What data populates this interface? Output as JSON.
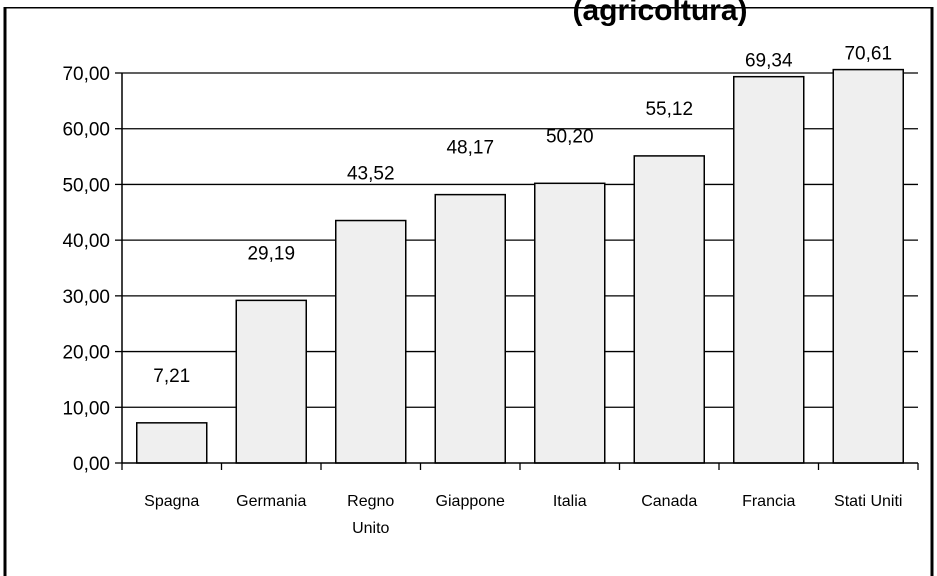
{
  "chart_data": {
    "type": "bar",
    "title": "(agricoltura)",
    "categories": [
      "Spagna",
      "Germania",
      "Regno Unito",
      "Giappone",
      "Italia",
      "Canada",
      "Francia",
      "Stati Uniti"
    ],
    "values": [
      7.21,
      29.19,
      43.52,
      48.17,
      50.2,
      55.12,
      69.34,
      70.61
    ],
    "value_labels": [
      "7,21",
      "29,19",
      "43,52",
      "48,17",
      "50,20",
      "55,12",
      "69,34",
      "70,61"
    ],
    "ylim": [
      0,
      70
    ],
    "yticks": [
      0,
      10,
      20,
      30,
      40,
      50,
      60,
      70
    ],
    "ytick_labels": [
      "0,00",
      "10,00",
      "20,00",
      "30,00",
      "40,00",
      "50,00",
      "60,00",
      "70,00"
    ],
    "xlabel": "",
    "ylabel": "",
    "grid": true,
    "legend": "none",
    "colors": {
      "bar_fill": "#efefef",
      "bar_stroke": "#000000",
      "grid": "#000000"
    }
  }
}
